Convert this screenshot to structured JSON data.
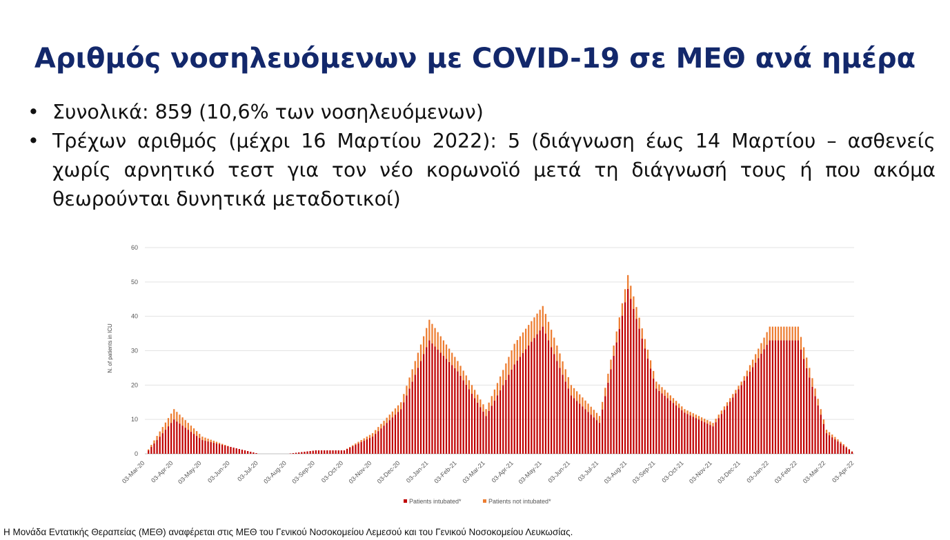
{
  "slide": {
    "title": "Αριθμός νοσηλευόμενων με COVID-19 σε ΜΕΘ ανά ημέρα",
    "bullets": [
      "Συνολικά: 859 (10,6% των νοσηλευόμενων)",
      "Τρέχων αριθμός (μέχρι 16 Μαρτίου 2022): 5 (διάγνωση έως 14 Μαρτίου – ασθενείς χωρίς αρνητικό τεστ για τον νέο κορωνοϊό μετά τη διάγνωσή τους ή που ακόμα θεωρούνται δυνητικά μεταδοτικοί)"
    ],
    "footnote": "Η Μονάδα Εντατικής Θεραπείας (ΜΕΘ) αναφέρεται στις ΜΕΘ του Γενικού Νοσοκομείου Λεμεσού και του Γενικού Νοσοκομείου Λευκωσίας."
  },
  "chart_data": {
    "type": "bar",
    "stacked": true,
    "ylabel": "N. of patients in ICU",
    "ylim": [
      0,
      60
    ],
    "yticks": [
      0,
      10,
      20,
      30,
      40,
      50,
      60
    ],
    "grid": true,
    "legend_position": "bottom",
    "x_tick_labels": [
      "03-Mar-20",
      "03-Apr-20",
      "03-May-20",
      "03-Jun-20",
      "03-Jul-20",
      "03-Aug-20",
      "03-Sep-20",
      "03-Oct-20",
      "03-Nov-20",
      "03-Dec-20",
      "03-Jan-21",
      "03-Feb-21",
      "03-Mar-21",
      "03-Apr-21",
      "03-May-21",
      "03-Jun-21",
      "03-Jul-21",
      "03-Aug-21",
      "03-Sep-21",
      "03-Oct-21",
      "03-Nov-21",
      "03-Dec-21",
      "03-Jan-22",
      "03-Feb-22",
      "03-Mar-22",
      "03-Apr-22"
    ],
    "series": [
      {
        "name": "Patients intubated*",
        "color": "#c00000"
      },
      {
        "name": "Patients not intubated*",
        "color": "#ed7d31"
      }
    ],
    "monthly_values": [
      {
        "month": "03-Mar-20",
        "intubated": 0,
        "not_intubated": 0
      },
      {
        "month": "03-Apr-20",
        "intubated": 10,
        "not_intubated": 3
      },
      {
        "month": "03-May-20",
        "intubated": 4,
        "not_intubated": 1
      },
      {
        "month": "03-Jun-20",
        "intubated": 2,
        "not_intubated": 0
      },
      {
        "month": "03-Jul-20",
        "intubated": 0,
        "not_intubated": 0
      },
      {
        "month": "03-Aug-20",
        "intubated": 0,
        "not_intubated": 0
      },
      {
        "month": "03-Sep-20",
        "intubated": 1,
        "not_intubated": 0
      },
      {
        "month": "03-Oct-20",
        "intubated": 1,
        "not_intubated": 0
      },
      {
        "month": "03-Nov-20",
        "intubated": 5,
        "not_intubated": 1
      },
      {
        "month": "03-Dec-20",
        "intubated": 13,
        "not_intubated": 2
      },
      {
        "month": "03-Jan-21",
        "intubated": 33,
        "not_intubated": 6
      },
      {
        "month": "03-Feb-21",
        "intubated": 24,
        "not_intubated": 3
      },
      {
        "month": "03-Mar-21",
        "intubated": 11,
        "not_intubated": 2
      },
      {
        "month": "03-Apr-21",
        "intubated": 26,
        "not_intubated": 6
      },
      {
        "month": "03-May-21",
        "intubated": 37,
        "not_intubated": 6
      },
      {
        "month": "03-Jun-21",
        "intubated": 17,
        "not_intubated": 3
      },
      {
        "month": "03-Jul-21",
        "intubated": 9,
        "not_intubated": 2
      },
      {
        "month": "03-Aug-21",
        "intubated": 48,
        "not_intubated": 4
      },
      {
        "month": "03-Sep-21",
        "intubated": 19,
        "not_intubated": 2
      },
      {
        "month": "03-Oct-21",
        "intubated": 12,
        "not_intubated": 1
      },
      {
        "month": "03-Nov-21",
        "intubated": 8,
        "not_intubated": 1
      },
      {
        "month": "03-Dec-21",
        "intubated": 20,
        "not_intubated": 1
      },
      {
        "month": "03-Jan-22",
        "intubated": 33,
        "not_intubated": 4
      },
      {
        "month": "03-Feb-22",
        "intubated": 33,
        "not_intubated": 4
      },
      {
        "month": "03-Mar-22",
        "intubated": 6,
        "not_intubated": 1
      },
      {
        "month": "03-Apr-22",
        "intubated": 0,
        "not_intubated": 0
      }
    ]
  }
}
